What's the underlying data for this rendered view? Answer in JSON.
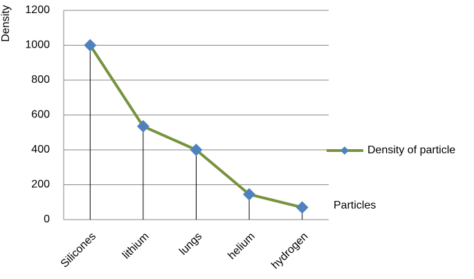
{
  "chart_data": {
    "type": "line",
    "y_label": "Density",
    "x_label": "Particles",
    "categories": [
      "Silicones",
      "lithium",
      "lungs",
      "helium",
      "hydrogen"
    ],
    "series": [
      {
        "name": "Density of particle",
        "color": "#77933c",
        "marker_color": "#4f81bd",
        "values": [
          1000,
          535,
          400,
          145,
          70
        ]
      }
    ],
    "ylim": [
      0,
      1200
    ],
    "yticks": [
      0,
      200,
      400,
      600,
      800,
      1000,
      1200
    ],
    "grid": true,
    "drop_lines": true,
    "legend": "right"
  }
}
